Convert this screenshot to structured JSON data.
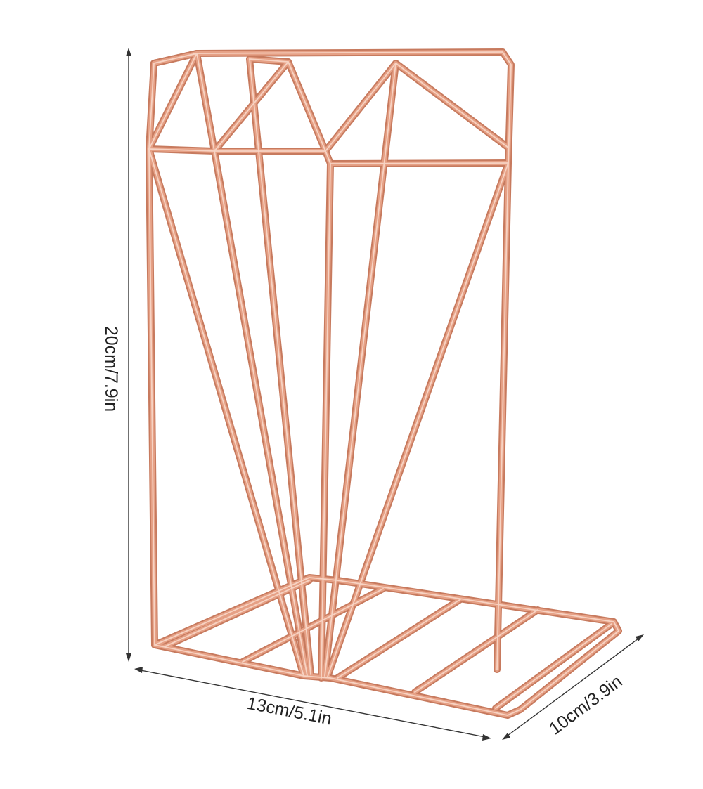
{
  "dimensions": {
    "height_label": "20cm/7.9in",
    "width_label": "13cm/5.1in",
    "depth_label": "10cm/3.9in"
  },
  "colors": {
    "background": "#ffffff",
    "wire_shadow": "#c77a5e",
    "wire_main": "#e6a186",
    "wire_highlight": "#f7d3c3",
    "dimension_line": "#333333",
    "dimension_text": "#222222"
  }
}
